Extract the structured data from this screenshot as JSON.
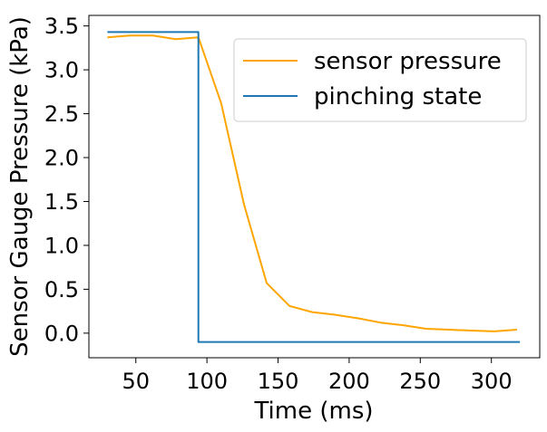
{
  "chart_data": {
    "type": "line",
    "xlabel": "Time (ms)",
    "ylabel": "Sensor Gauge Pressure (kPa)",
    "xlim": [
      17,
      334
    ],
    "ylim": [
      -0.28,
      3.62
    ],
    "xticks": [
      50,
      100,
      150,
      200,
      250,
      300
    ],
    "yticks": [
      0.0,
      0.5,
      1.0,
      1.5,
      2.0,
      2.5,
      3.0,
      3.5
    ],
    "ytick_labels": [
      "0.0",
      "0.5",
      "1.0",
      "1.5",
      "2.0",
      "2.5",
      "3.0",
      "3.5"
    ],
    "grid": false,
    "legend_placement": "upper right",
    "series": [
      {
        "name": "sensor pressure",
        "color": "#ffa500",
        "x": [
          30,
          46,
          62,
          78,
          94,
          110,
          126,
          142,
          158,
          174,
          190,
          206,
          222,
          238,
          254,
          270,
          286,
          302,
          318
        ],
        "y": [
          3.37,
          3.39,
          3.39,
          3.35,
          3.37,
          2.62,
          1.47,
          0.57,
          0.31,
          0.24,
          0.21,
          0.17,
          0.12,
          0.09,
          0.05,
          0.04,
          0.03,
          0.02,
          0.04
        ]
      },
      {
        "name": "pinching state",
        "color": "#1f77b4",
        "x": [
          30,
          94,
          94,
          320
        ],
        "y": [
          3.43,
          3.43,
          -0.1,
          -0.1
        ]
      }
    ]
  }
}
